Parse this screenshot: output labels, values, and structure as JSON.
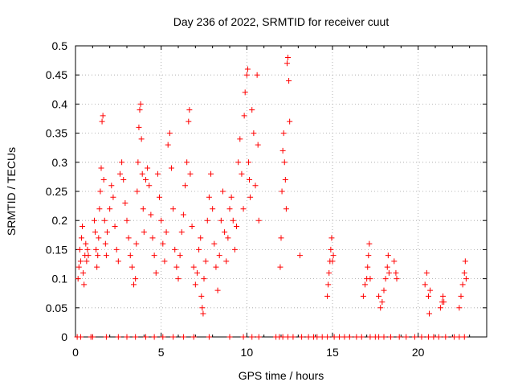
{
  "chart_data": {
    "type": "scatter",
    "title": "Day 236 of 2022, SRMTID for receiver cuut",
    "xlabel": "GPS time / hours",
    "ylabel": "SRMTID / TECUs",
    "xlim": [
      0,
      24
    ],
    "ylim": [
      0,
      0.5
    ],
    "grid": true,
    "marker": "+",
    "series": [
      {
        "name": "SRMTID",
        "color": "#ff0000",
        "points": [
          [
            0.15,
            0.1
          ],
          [
            0.2,
            0.12
          ],
          [
            0.25,
            0.15
          ],
          [
            0.3,
            0.13
          ],
          [
            0.35,
            0.17
          ],
          [
            0.4,
            0.19
          ],
          [
            0.45,
            0.11
          ],
          [
            0.5,
            0.09
          ],
          [
            0.55,
            0.14
          ],
          [
            0.6,
            0.16
          ],
          [
            0.65,
            0.13
          ],
          [
            0.7,
            0.15
          ],
          [
            0.75,
            0.14
          ],
          [
            1.1,
            0.2
          ],
          [
            1.15,
            0.18
          ],
          [
            1.2,
            0.15
          ],
          [
            1.25,
            0.12
          ],
          [
            1.3,
            0.14
          ],
          [
            1.35,
            0.17
          ],
          [
            1.4,
            0.22
          ],
          [
            1.45,
            0.25
          ],
          [
            1.5,
            0.29
          ],
          [
            1.55,
            0.37
          ],
          [
            1.6,
            0.38
          ],
          [
            1.65,
            0.27
          ],
          [
            1.7,
            0.2
          ],
          [
            1.75,
            0.16
          ],
          [
            1.8,
            0.14
          ],
          [
            1.85,
            0.18
          ],
          [
            2.0,
            0.22
          ],
          [
            2.1,
            0.26
          ],
          [
            2.2,
            0.24
          ],
          [
            2.3,
            0.19
          ],
          [
            2.4,
            0.15
          ],
          [
            2.5,
            0.13
          ],
          [
            2.6,
            0.28
          ],
          [
            2.7,
            0.3
          ],
          [
            2.8,
            0.27
          ],
          [
            2.9,
            0.23
          ],
          [
            3.0,
            0.2
          ],
          [
            3.1,
            0.17
          ],
          [
            3.2,
            0.14
          ],
          [
            3.3,
            0.12
          ],
          [
            3.4,
            0.09
          ],
          [
            3.5,
            0.1
          ],
          [
            3.55,
            0.16
          ],
          [
            3.6,
            0.25
          ],
          [
            3.65,
            0.3
          ],
          [
            3.7,
            0.36
          ],
          [
            3.75,
            0.39
          ],
          [
            3.8,
            0.4
          ],
          [
            3.85,
            0.34
          ],
          [
            3.9,
            0.28
          ],
          [
            3.95,
            0.22
          ],
          [
            4.0,
            0.18
          ],
          [
            4.1,
            0.27
          ],
          [
            4.2,
            0.29
          ],
          [
            4.3,
            0.26
          ],
          [
            4.4,
            0.21
          ],
          [
            4.5,
            0.17
          ],
          [
            4.6,
            0.14
          ],
          [
            4.7,
            0.11
          ],
          [
            4.8,
            0.28
          ],
          [
            4.9,
            0.24
          ],
          [
            5.0,
            0.2
          ],
          [
            5.1,
            0.16
          ],
          [
            5.2,
            0.13
          ],
          [
            5.3,
            0.18
          ],
          [
            5.4,
            0.33
          ],
          [
            5.5,
            0.35
          ],
          [
            5.6,
            0.29
          ],
          [
            5.7,
            0.22
          ],
          [
            5.8,
            0.15
          ],
          [
            5.9,
            0.12
          ],
          [
            6.0,
            0.1
          ],
          [
            6.1,
            0.14
          ],
          [
            6.2,
            0.18
          ],
          [
            6.3,
            0.21
          ],
          [
            6.4,
            0.26
          ],
          [
            6.5,
            0.3
          ],
          [
            6.6,
            0.37
          ],
          [
            6.65,
            0.39
          ],
          [
            6.7,
            0.28
          ],
          [
            6.8,
            0.19
          ],
          [
            6.9,
            0.12
          ],
          [
            7.0,
            0.09
          ],
          [
            7.1,
            0.11
          ],
          [
            7.2,
            0.15
          ],
          [
            7.3,
            0.17
          ],
          [
            7.35,
            0.07
          ],
          [
            7.4,
            0.05
          ],
          [
            7.45,
            0.04
          ],
          [
            7.5,
            0.1
          ],
          [
            7.6,
            0.13
          ],
          [
            7.7,
            0.2
          ],
          [
            7.8,
            0.24
          ],
          [
            7.9,
            0.28
          ],
          [
            8.0,
            0.22
          ],
          [
            8.1,
            0.16
          ],
          [
            8.2,
            0.12
          ],
          [
            8.3,
            0.08
          ],
          [
            8.4,
            0.14
          ],
          [
            8.5,
            0.2
          ],
          [
            8.6,
            0.25
          ],
          [
            8.7,
            0.18
          ],
          [
            8.8,
            0.13
          ],
          [
            8.9,
            0.17
          ],
          [
            9.0,
            0.22
          ],
          [
            9.1,
            0.24
          ],
          [
            9.2,
            0.2
          ],
          [
            9.3,
            0.15
          ],
          [
            9.4,
            0.19
          ],
          [
            9.5,
            0.3
          ],
          [
            9.6,
            0.34
          ],
          [
            9.7,
            0.28
          ],
          [
            9.8,
            0.22
          ],
          [
            9.85,
            0.38
          ],
          [
            9.9,
            0.42
          ],
          [
            10.0,
            0.45
          ],
          [
            10.05,
            0.46
          ],
          [
            10.1,
            0.3
          ],
          [
            10.15,
            0.27
          ],
          [
            10.2,
            0.24
          ],
          [
            10.3,
            0.39
          ],
          [
            10.4,
            0.35
          ],
          [
            10.5,
            0.26
          ],
          [
            10.6,
            0.45
          ],
          [
            10.65,
            0.33
          ],
          [
            10.7,
            0.2
          ],
          [
            11.95,
            0.12
          ],
          [
            12.0,
            0.17
          ],
          [
            12.05,
            0.25
          ],
          [
            12.1,
            0.32
          ],
          [
            12.15,
            0.35
          ],
          [
            12.2,
            0.3
          ],
          [
            12.25,
            0.27
          ],
          [
            12.3,
            0.22
          ],
          [
            12.35,
            0.47
          ],
          [
            12.4,
            0.48
          ],
          [
            12.45,
            0.44
          ],
          [
            12.5,
            0.37
          ],
          [
            13.1,
            0.14
          ],
          [
            14.7,
            0.07
          ],
          [
            14.75,
            0.09
          ],
          [
            14.8,
            0.11
          ],
          [
            14.85,
            0.13
          ],
          [
            14.9,
            0.15
          ],
          [
            14.95,
            0.17
          ],
          [
            15.0,
            0.13
          ],
          [
            15.05,
            0.14
          ],
          [
            16.8,
            0.07
          ],
          [
            16.9,
            0.09
          ],
          [
            17.0,
            0.1
          ],
          [
            17.05,
            0.12
          ],
          [
            17.1,
            0.14
          ],
          [
            17.15,
            0.16
          ],
          [
            17.2,
            0.1
          ],
          [
            17.7,
            0.07
          ],
          [
            17.8,
            0.05
          ],
          [
            17.9,
            0.06
          ],
          [
            18.0,
            0.08
          ],
          [
            18.1,
            0.1
          ],
          [
            18.2,
            0.12
          ],
          [
            18.25,
            0.14
          ],
          [
            18.3,
            0.11
          ],
          [
            18.6,
            0.13
          ],
          [
            18.7,
            0.11
          ],
          [
            18.75,
            0.1
          ],
          [
            20.4,
            0.09
          ],
          [
            20.5,
            0.11
          ],
          [
            20.6,
            0.07
          ],
          [
            20.65,
            0.04
          ],
          [
            20.7,
            0.08
          ],
          [
            21.3,
            0.05
          ],
          [
            21.4,
            0.06
          ],
          [
            21.45,
            0.07
          ],
          [
            21.5,
            0.06
          ],
          [
            22.4,
            0.05
          ],
          [
            22.5,
            0.07
          ],
          [
            22.6,
            0.09
          ],
          [
            22.7,
            0.11
          ],
          [
            22.75,
            0.13
          ],
          [
            22.8,
            0.1
          ]
        ],
        "zero_points_x": [
          0.1,
          0.3,
          0.9,
          1.0,
          1.8,
          2.5,
          3.0,
          3.5,
          4.1,
          4.6,
          5.1,
          5.7,
          6.3,
          6.9,
          7.8,
          9.0,
          9.8,
          10.3,
          10.7,
          11.7,
          11.9,
          12.1,
          12.4,
          12.7,
          13.2,
          13.6,
          13.9,
          14.1,
          14.4,
          14.7,
          15.1,
          15.4,
          15.7,
          16.0,
          16.4,
          16.7,
          17.2,
          17.5,
          17.7,
          18.0,
          18.4,
          18.9,
          19.3,
          19.8,
          20.2,
          20.6,
          20.9,
          21.2,
          21.6,
          22.1,
          22.4,
          22.7
        ]
      }
    ]
  }
}
